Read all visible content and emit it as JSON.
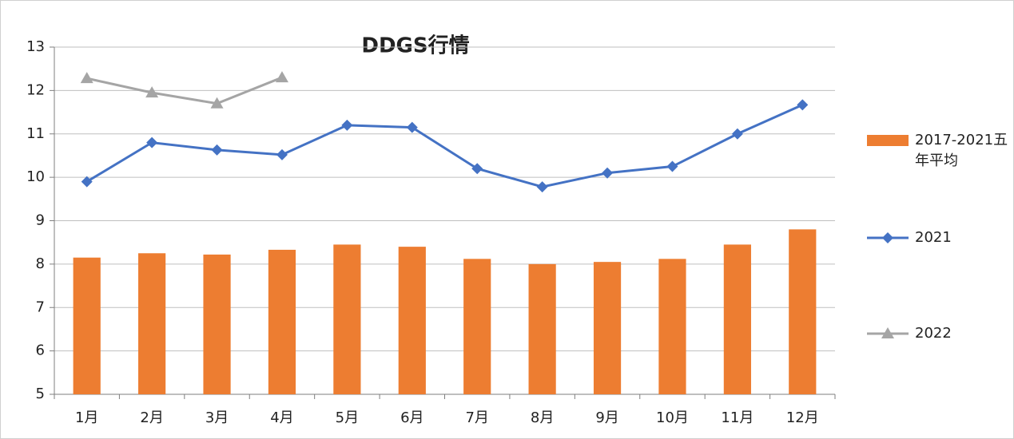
{
  "chart_data": {
    "type": "bar-line",
    "title": "DDGS行情",
    "categories": [
      "1月",
      "2月",
      "3月",
      "4月",
      "5月",
      "6月",
      "7月",
      "8月",
      "9月",
      "10月",
      "11月",
      "12月"
    ],
    "series": [
      {
        "name": "2017-2021五年平均",
        "type": "bar",
        "color": "#ed7d31",
        "values": [
          8.15,
          8.25,
          8.22,
          8.33,
          8.45,
          8.4,
          8.12,
          8.0,
          8.05,
          8.12,
          8.45,
          8.8
        ]
      },
      {
        "name": "2021",
        "type": "line",
        "marker": "diamond",
        "color": "#4472c4",
        "values": [
          9.9,
          10.8,
          10.63,
          10.52,
          11.2,
          11.15,
          10.2,
          9.78,
          10.1,
          10.25,
          11.0,
          11.67
        ]
      },
      {
        "name": "2022",
        "type": "line",
        "marker": "triangle",
        "color": "#a5a5a5",
        "values": [
          12.28,
          11.95,
          11.7,
          12.3,
          null,
          null,
          null,
          null,
          null,
          null,
          null,
          null
        ]
      }
    ],
    "ylim": [
      5,
      13
    ],
    "yticks": [
      5,
      6,
      7,
      8,
      9,
      10,
      11,
      12,
      13
    ],
    "grid": true,
    "legend": "right"
  }
}
